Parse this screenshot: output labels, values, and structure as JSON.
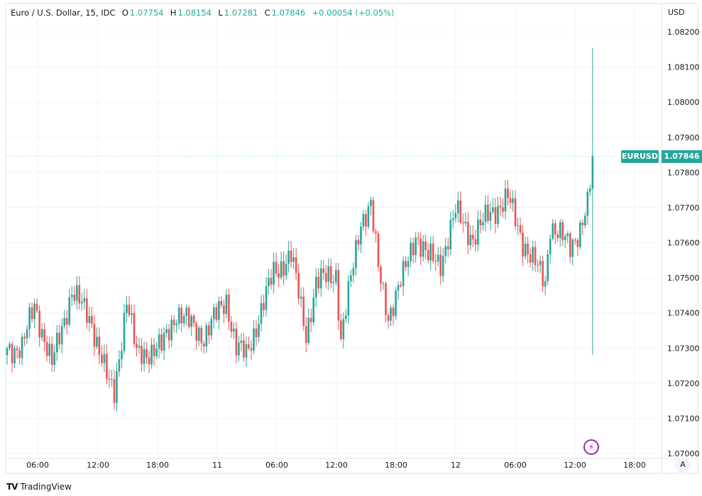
{
  "legend": {
    "title": "Euro / U.S. Dollar, 15, IDC",
    "open_label": "O",
    "open": "1.07754",
    "high_label": "H",
    "high": "1.08154",
    "low_label": "L",
    "low": "1.07281",
    "close_label": "C",
    "close": "1.07846",
    "change": "+0.00054 (+0.05%)"
  },
  "currency": "USD",
  "symbol_tag": "EURUSD",
  "price_tag": "1.07846",
  "auto_button": "A",
  "brand": "TradingView",
  "colors": {
    "up": "#26a69a",
    "down": "#ef5350",
    "grid": "#f0f3fa",
    "accent": "#9c27b0"
  },
  "chart_data": {
    "type": "candlestick",
    "title": "Euro / U.S. Dollar, 15, IDC",
    "ylim": [
      1.07,
      1.082
    ],
    "y_ticks": [
      "1.08200",
      "1.08100",
      "1.08000",
      "1.07900",
      "1.07800",
      "1.07700",
      "1.07600",
      "1.07500",
      "1.07400",
      "1.07300",
      "1.07200",
      "1.07100",
      "1.07000"
    ],
    "x_ticks": [
      "06:00",
      "12:00",
      "18:00",
      "11",
      "06:00",
      "12:00",
      "18:00",
      "12",
      "06:00",
      "12:00",
      "18:00"
    ],
    "bar_count": 236,
    "close_anchors": [
      [
        0,
        1.073
      ],
      [
        6,
        1.073
      ],
      [
        11,
        1.07424
      ],
      [
        18,
        1.07252
      ],
      [
        26,
        1.07464
      ],
      [
        34,
        1.07373
      ],
      [
        41,
        1.07192
      ],
      [
        43,
        1.07171
      ],
      [
        48,
        1.0744
      ],
      [
        52,
        1.0728
      ],
      [
        62,
        1.07302
      ],
      [
        68,
        1.07403
      ],
      [
        79,
        1.07333
      ],
      [
        88,
        1.0744
      ],
      [
        92,
        1.073
      ],
      [
        96,
        1.0728
      ],
      [
        107,
        1.07514
      ],
      [
        114,
        1.07565
      ],
      [
        120,
        1.0734
      ],
      [
        124,
        1.07484
      ],
      [
        132,
        1.07514
      ],
      [
        134,
        1.07323
      ],
      [
        142,
        1.07665
      ],
      [
        146,
        1.07706
      ],
      [
        149,
        1.07524
      ],
      [
        153,
        1.07393
      ],
      [
        159,
        1.07504
      ],
      [
        164,
        1.07625
      ],
      [
        169,
        1.07555
      ],
      [
        174,
        1.07545
      ],
      [
        180,
        1.07686
      ],
      [
        187,
        1.07615
      ],
      [
        194,
        1.07686
      ],
      [
        201,
        1.07726
      ],
      [
        207,
        1.07605
      ],
      [
        216,
        1.07484
      ],
      [
        218,
        1.07655
      ],
      [
        226,
        1.07585
      ],
      [
        230,
        1.07645
      ],
      [
        233,
        1.07706
      ],
      [
        234,
        1.07754
      ]
    ],
    "last_bar": {
      "open": 1.07754,
      "high": 1.08154,
      "low": 1.07281,
      "close": 1.07846
    },
    "grid": true
  }
}
